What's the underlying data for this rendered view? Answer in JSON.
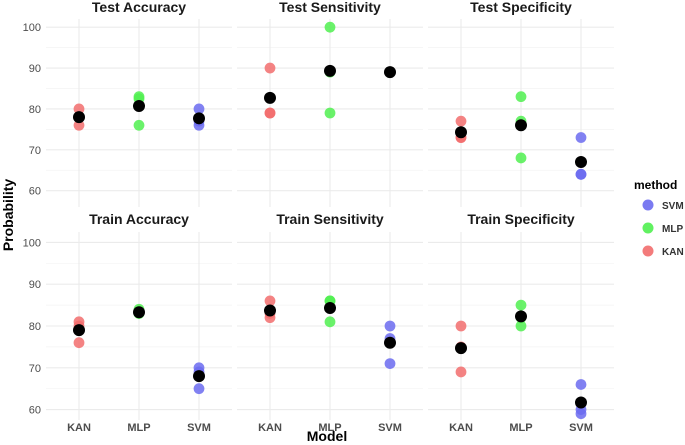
{
  "chart_data": {
    "type": "scatter",
    "xlabel": "Model",
    "ylabel": "Probability",
    "categories": [
      "KAN",
      "MLP",
      "SVM"
    ],
    "legend": {
      "title": "method",
      "position": "right",
      "entries": [
        {
          "label": "SVM",
          "color": "#6b6bf0"
        },
        {
          "label": "MLP",
          "color": "#50f050"
        },
        {
          "label": "KAN",
          "color": "#f26d6d"
        }
      ]
    },
    "mean_color": "#000000",
    "panels": [
      {
        "title": "Test Accuracy",
        "ylim": [
          56,
          102
        ],
        "yticks": [
          60,
          70,
          80,
          90,
          100
        ],
        "points": {
          "KAN": [
            80,
            78,
            76
          ],
          "MLP": [
            83,
            82.5,
            76
          ],
          "SVM": [
            80,
            77,
            76
          ]
        },
        "means": {
          "KAN": 78,
          "MLP": 80.7,
          "SVM": 77.7
        }
      },
      {
        "title": "Test Sensitivity",
        "ylim": [
          56,
          102
        ],
        "yticks": [
          60,
          70,
          80,
          90,
          100
        ],
        "points": {
          "KAN": [
            90,
            79,
            79
          ],
          "MLP": [
            100,
            89,
            79
          ],
          "SVM": [
            89,
            89,
            89
          ]
        },
        "means": {
          "KAN": 82.7,
          "MLP": 89.3,
          "SVM": 89
        }
      },
      {
        "title": "Test Specificity",
        "ylim": [
          56,
          102
        ],
        "yticks": [
          60,
          70,
          80,
          90,
          100
        ],
        "points": {
          "KAN": [
            77,
            73,
            73
          ],
          "MLP": [
            83,
            77,
            68
          ],
          "SVM": [
            73,
            64,
            64
          ]
        },
        "means": {
          "KAN": 74.3,
          "MLP": 76,
          "SVM": 67
        }
      },
      {
        "title": "Train Accuracy",
        "ylim": [
          57.5,
          102.5
        ],
        "yticks": [
          60,
          70,
          80,
          90,
          100
        ],
        "points": {
          "KAN": [
            81,
            80,
            76
          ],
          "MLP": [
            84,
            83,
            83
          ],
          "SVM": [
            70,
            69,
            65
          ]
        },
        "means": {
          "KAN": 79,
          "MLP": 83.3,
          "SVM": 68
        }
      },
      {
        "title": "Train Sensitivity",
        "ylim": [
          57.5,
          102.5
        ],
        "yticks": [
          60,
          70,
          80,
          90,
          100
        ],
        "points": {
          "KAN": [
            86,
            83,
            82
          ],
          "MLP": [
            86,
            86,
            81
          ],
          "SVM": [
            80,
            77,
            71
          ]
        },
        "means": {
          "KAN": 83.7,
          "MLP": 84.3,
          "SVM": 76
        }
      },
      {
        "title": "Train Specificity",
        "ylim": [
          57.5,
          102.5
        ],
        "yticks": [
          60,
          70,
          80,
          90,
          100
        ],
        "points": {
          "KAN": [
            80,
            75,
            69
          ],
          "MLP": [
            85,
            82,
            80
          ],
          "SVM": [
            66,
            60,
            59
          ]
        },
        "means": {
          "KAN": 74.7,
          "MLP": 82.3,
          "SVM": 61.7
        }
      }
    ]
  }
}
